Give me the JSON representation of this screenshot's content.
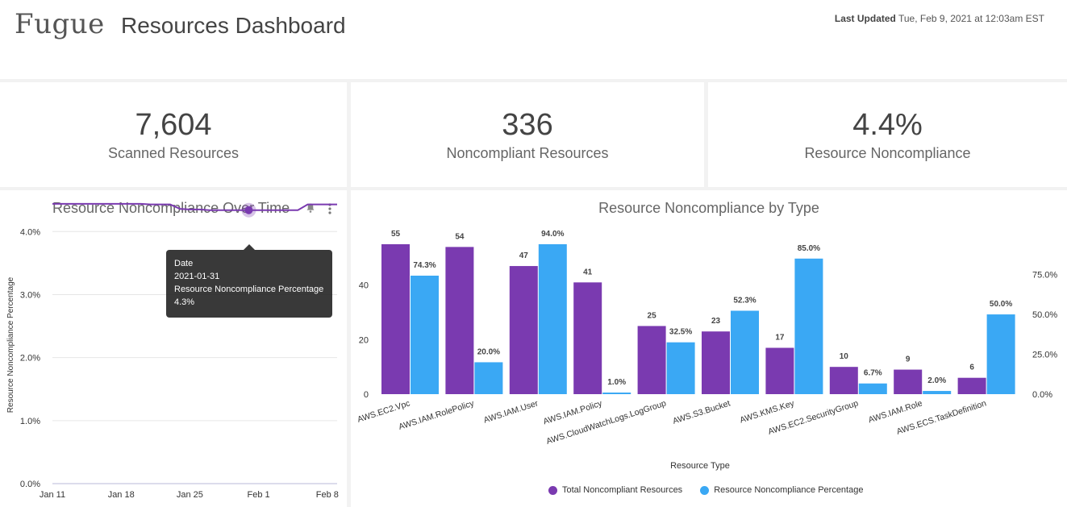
{
  "header": {
    "logo": "Fugue",
    "title": "Resources Dashboard",
    "last_updated_label": "Last Updated",
    "last_updated_value": "Tue, Feb 9, 2021 at 12:03am EST"
  },
  "kpis": [
    {
      "value": "7,604",
      "label": "Scanned Resources"
    },
    {
      "value": "336",
      "label": "Noncompliant Resources"
    },
    {
      "value": "4.4%",
      "label": "Resource Noncompliance"
    }
  ],
  "colors": {
    "purple": "#7a3ab0",
    "blue": "#3aa8f4",
    "line": "#7a3ab0"
  },
  "icons": {
    "bell": "bell-icon",
    "more": "more-vertical-icon"
  },
  "time_chart": {
    "title": "Resource Noncompliance Over Time",
    "tooltip": {
      "date_label": "Date",
      "date_value": "2021-01-31",
      "metric_label": "Resource Noncompliance Percentage",
      "metric_value": "4.3%"
    }
  },
  "bar_chart_meta": {
    "title": "Resource Noncompliance by Type",
    "legend": [
      "Total Noncompliant Resources",
      "Resource Noncompliance Percentage"
    ]
  },
  "chart_data": [
    {
      "type": "line",
      "title": "Resource Noncompliance Over Time",
      "xlabel": "",
      "ylabel": "Resource Noncompliance Percentage",
      "x_ticks": [
        "Jan 11",
        "Jan 18",
        "Jan 25",
        "Feb 1",
        "Feb 8"
      ],
      "y_ticks": [
        "0.0%",
        "1.0%",
        "2.0%",
        "3.0%",
        "4.0%"
      ],
      "ylim": [
        0,
        4.4
      ],
      "x": [
        0,
        1,
        2,
        3,
        4,
        5,
        6,
        7,
        8,
        9,
        10,
        11,
        12,
        13,
        14,
        15,
        16,
        17,
        18,
        19,
        20,
        21,
        22,
        23,
        24,
        25,
        26,
        27,
        28,
        29
      ],
      "series": [
        {
          "values": [
            4.44,
            4.44,
            4.44,
            4.44,
            4.44,
            4.44,
            4.44,
            4.44,
            4.44,
            4.44,
            4.43,
            4.43,
            4.43,
            4.36,
            4.35,
            4.35,
            4.34,
            4.34,
            4.34,
            4.34,
            4.34,
            4.34,
            4.34,
            4.34,
            4.34,
            4.34,
            4.43,
            4.43,
            4.43,
            4.43
          ]
        }
      ],
      "highlight_index": 20
    },
    {
      "type": "bar",
      "title": "Resource Noncompliance by Type",
      "xlabel": "Resource Type",
      "ylabel": "",
      "categories": [
        "AWS.EC2.Vpc",
        "AWS.IAM.RolePolicy",
        "AWS.IAM.User",
        "AWS.IAM.Policy",
        "AWS.CloudWatchLogs.LogGroup",
        "AWS.S3.Bucket",
        "AWS.KMS.Key",
        "AWS.EC2.SecurityGroup",
        "AWS.IAM.Role",
        "AWS.ECS.TaskDefinition"
      ],
      "series": [
        {
          "name": "Total Noncompliant Resources",
          "values": [
            55,
            54,
            47,
            41,
            25,
            23,
            17,
            10,
            9,
            6
          ],
          "labels": [
            "55",
            "54",
            "47",
            "41",
            "25",
            "23",
            "17",
            "10",
            "9",
            "6"
          ],
          "axis": "left"
        },
        {
          "name": "Resource Noncompliance Percentage",
          "values": [
            74.3,
            20.0,
            94.0,
            1.0,
            32.5,
            52.3,
            85.0,
            6.7,
            2.0,
            50.0
          ],
          "labels": [
            "74.3%",
            "20.0%",
            "94.0%",
            "1.0%",
            "32.5%",
            "52.3%",
            "85.0%",
            "6.7%",
            "2.0%",
            "50.0%"
          ],
          "axis": "right"
        }
      ],
      "left_ticks": [
        "0",
        "20",
        "40"
      ],
      "left_tick_values": [
        0,
        20,
        40
      ],
      "left_ylim": [
        0,
        55
      ],
      "right_ticks": [
        "0.0%",
        "25.0%",
        "50.0%",
        "75.0%"
      ],
      "right_tick_values": [
        0,
        25,
        50,
        75
      ],
      "right_ylim": [
        0,
        94
      ]
    }
  ]
}
